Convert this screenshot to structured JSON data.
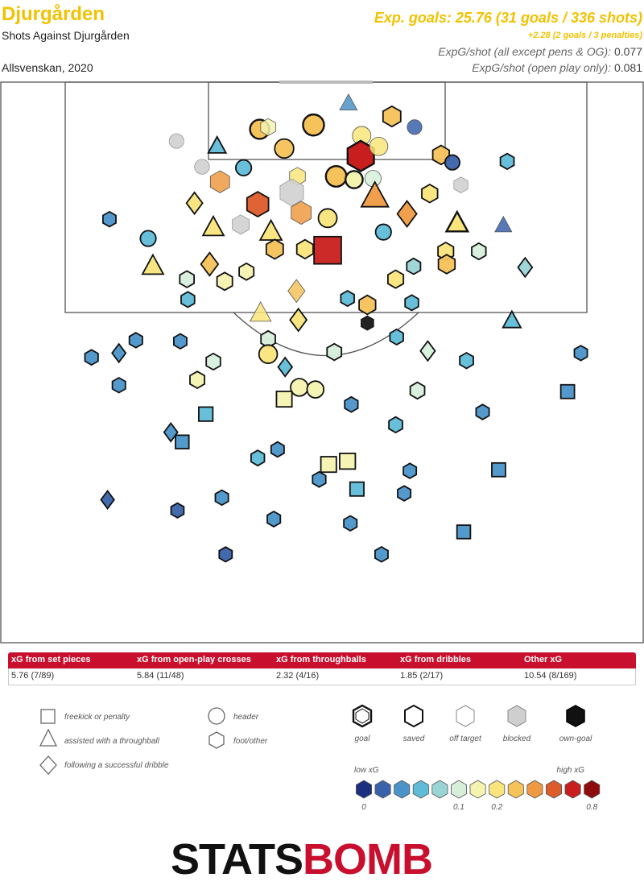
{
  "header": {
    "team": "Djurgården",
    "subtitle": "Shots Against Djurgården",
    "competition": "Allsvenskan, 2020",
    "xg_total": "Exp. goals: 25.76 (31 goals / 336 shots)",
    "xg_pens": "+2.28 (2 goals / 3 penalties)",
    "xg_per_shot_all_label": "ExpG/shot (all except pens & OG):",
    "xg_per_shot_all_value": "0.077",
    "xg_per_shot_open_label": "ExpG/shot (open play only):",
    "xg_per_shot_open_value": "0.081"
  },
  "colors": {
    "scale": [
      "#1d2f80",
      "#3a62aa",
      "#4b93c8",
      "#5fbcd8",
      "#9ad5d6",
      "#d6efdb",
      "#f5f3b0",
      "#f9e57b",
      "#f6c25a",
      "#ef9a42",
      "#dc5c2a",
      "#c91e1e",
      "#8e0c0c"
    ],
    "grey": "#d0d0d0",
    "own_goal": "#222222",
    "brand_red": "#c8102e",
    "title_yellow": "#f2c200"
  },
  "stats": [
    {
      "label": "xG from set pieces",
      "value": "5.76 (7/89)"
    },
    {
      "label": "xG from open-play crosses",
      "value": "5.84 (11/48)"
    },
    {
      "label": "xG from throughballs",
      "value": "2.32 (4/16)"
    },
    {
      "label": "xG from dribbles",
      "value": "1.85 (2/17)"
    },
    {
      "label": "Other xG",
      "value": "10.54 (8/169)"
    }
  ],
  "legend": {
    "shapes": [
      {
        "shape": "square",
        "label": "freekick or penalty"
      },
      {
        "shape": "triangle",
        "label": "assisted with a throughball"
      },
      {
        "shape": "diamond",
        "label": "following a successful dribble"
      },
      {
        "shape": "circle",
        "label": "header"
      },
      {
        "shape": "hexagon",
        "label": "foot/other"
      }
    ],
    "outcomes": [
      {
        "key": "goal",
        "label": "goal"
      },
      {
        "key": "saved",
        "label": "saved"
      },
      {
        "key": "off",
        "label": "off target"
      },
      {
        "key": "blocked",
        "label": "blocked"
      },
      {
        "key": "own",
        "label": "own-goal"
      }
    ],
    "low_label": "low xG",
    "high_label": "high xG",
    "scale_ticks": [
      {
        "label": "0",
        "index": 0
      },
      {
        "label": "0.1",
        "index": 5
      },
      {
        "label": "0.2",
        "index": 7
      },
      {
        "label": "0.8",
        "index": 12
      }
    ]
  },
  "logo": {
    "part1": "STATS",
    "part2": "BOMB"
  },
  "chart_data": {
    "type": "scatter",
    "title": "Shots Against Djurgården",
    "note": "x = distance from goal-line to right (m across width), y = depth from goal-line; xg = expected goal value",
    "x_range": [
      0,
      68
    ],
    "y_range": [
      0,
      52.5
    ],
    "series": [
      {
        "name": "shots",
        "points": [
          {
            "x": 36.8,
            "y": 2.0,
            "xg": 0.03,
            "shape": "triangle",
            "outcome": "off"
          },
          {
            "x": 18.6,
            "y": 5.5,
            "xg": 0.01,
            "shape": "circle",
            "outcome": "blocked"
          },
          {
            "x": 27.4,
            "y": 4.4,
            "xg": 0.21,
            "shape": "circle",
            "outcome": "goal"
          },
          {
            "x": 28.3,
            "y": 4.2,
            "xg": 0.12,
            "shape": "hexagon",
            "outcome": "off"
          },
          {
            "x": 33.1,
            "y": 4.0,
            "xg": 0.29,
            "shape": "circle",
            "outcome": "goal"
          },
          {
            "x": 38.2,
            "y": 5.0,
            "xg": 0.18,
            "shape": "circle",
            "outcome": "off"
          },
          {
            "x": 41.4,
            "y": 3.2,
            "xg": 0.26,
            "shape": "hexagon",
            "outcome": "saved"
          },
          {
            "x": 43.8,
            "y": 4.2,
            "xg": 0.01,
            "shape": "circle",
            "outcome": "off"
          },
          {
            "x": 22.9,
            "y": 6.0,
            "xg": 0.04,
            "shape": "triangle",
            "outcome": "saved"
          },
          {
            "x": 30.0,
            "y": 6.2,
            "xg": 0.2,
            "shape": "circle",
            "outcome": "saved"
          },
          {
            "x": 38.1,
            "y": 6.9,
            "xg": 0.7,
            "shape": "hexagon",
            "outcome": "goal"
          },
          {
            "x": 40.0,
            "y": 6.0,
            "xg": 0.17,
            "shape": "circle",
            "outcome": "off"
          },
          {
            "x": 46.6,
            "y": 6.8,
            "xg": 0.2,
            "shape": "hexagon",
            "outcome": "saved"
          },
          {
            "x": 47.8,
            "y": 7.5,
            "xg": 0.01,
            "shape": "circle",
            "outcome": "saved"
          },
          {
            "x": 53.6,
            "y": 7.4,
            "xg": 0.05,
            "shape": "hexagon",
            "outcome": "saved"
          },
          {
            "x": 21.3,
            "y": 7.9,
            "xg": 0.02,
            "shape": "circle",
            "outcome": "blocked"
          },
          {
            "x": 25.7,
            "y": 8.0,
            "xg": 0.05,
            "shape": "circle",
            "outcome": "saved"
          },
          {
            "x": 31.4,
            "y": 8.8,
            "xg": 0.16,
            "shape": "hexagon",
            "outcome": "off"
          },
          {
            "x": 35.5,
            "y": 8.8,
            "xg": 0.27,
            "shape": "circle",
            "outcome": "goal"
          },
          {
            "x": 37.4,
            "y": 9.1,
            "xg": 0.12,
            "shape": "circle",
            "outcome": "goal"
          },
          {
            "x": 39.4,
            "y": 9.0,
            "xg": 0.08,
            "shape": "circle",
            "outcome": "off"
          },
          {
            "x": 23.2,
            "y": 9.3,
            "xg": 0.34,
            "shape": "hexagon",
            "outcome": "off"
          },
          {
            "x": 30.8,
            "y": 10.3,
            "xg": 0.55,
            "shape": "hexagon",
            "outcome": "blocked"
          },
          {
            "x": 39.6,
            "y": 10.7,
            "xg": 0.4,
            "shape": "triangle",
            "outcome": "saved"
          },
          {
            "x": 45.4,
            "y": 10.4,
            "xg": 0.16,
            "shape": "hexagon",
            "outcome": "saved"
          },
          {
            "x": 48.7,
            "y": 9.6,
            "xg": 0.07,
            "shape": "hexagon",
            "outcome": "blocked"
          },
          {
            "x": 20.5,
            "y": 11.3,
            "xg": 0.15,
            "shape": "diamond",
            "outcome": "saved"
          },
          {
            "x": 27.2,
            "y": 11.4,
            "xg": 0.46,
            "shape": "hexagon",
            "outcome": "saved"
          },
          {
            "x": 31.8,
            "y": 12.2,
            "xg": 0.38,
            "shape": "hexagon",
            "outcome": "off"
          },
          {
            "x": 34.6,
            "y": 12.7,
            "xg": 0.18,
            "shape": "circle",
            "outcome": "saved"
          },
          {
            "x": 43.0,
            "y": 12.3,
            "xg": 0.31,
            "shape": "diamond",
            "outcome": "saved"
          },
          {
            "x": 48.3,
            "y": 13.2,
            "xg": 0.18,
            "shape": "triangle",
            "outcome": "goal"
          },
          {
            "x": 11.5,
            "y": 12.8,
            "xg": 0.02,
            "shape": "hexagon",
            "outcome": "saved"
          },
          {
            "x": 22.5,
            "y": 13.6,
            "xg": 0.16,
            "shape": "triangle",
            "outcome": "saved"
          },
          {
            "x": 28.6,
            "y": 14.0,
            "xg": 0.19,
            "shape": "triangle",
            "outcome": "saved"
          },
          {
            "x": 25.4,
            "y": 13.3,
            "xg": 0.22,
            "shape": "hexagon",
            "outcome": "blocked"
          },
          {
            "x": 40.5,
            "y": 14.0,
            "xg": 0.05,
            "shape": "circle",
            "outcome": "saved"
          },
          {
            "x": 53.2,
            "y": 13.4,
            "xg": 0.01,
            "shape": "triangle",
            "outcome": "off"
          },
          {
            "x": 15.6,
            "y": 14.6,
            "xg": 0.05,
            "shape": "circle",
            "outcome": "saved"
          },
          {
            "x": 29.0,
            "y": 15.6,
            "xg": 0.22,
            "shape": "hexagon",
            "outcome": "saved"
          },
          {
            "x": 32.2,
            "y": 15.6,
            "xg": 0.19,
            "shape": "hexagon",
            "outcome": "saved"
          },
          {
            "x": 34.6,
            "y": 15.7,
            "xg": 0.7,
            "shape": "square",
            "outcome": "saved"
          },
          {
            "x": 47.1,
            "y": 15.8,
            "xg": 0.15,
            "shape": "hexagon",
            "outcome": "saved"
          },
          {
            "x": 50.6,
            "y": 15.8,
            "xg": 0.08,
            "shape": "hexagon",
            "outcome": "saved"
          },
          {
            "x": 16.1,
            "y": 17.2,
            "xg": 0.17,
            "shape": "triangle",
            "outcome": "saved"
          },
          {
            "x": 22.1,
            "y": 17.0,
            "xg": 0.21,
            "shape": "diamond",
            "outcome": "saved"
          },
          {
            "x": 26.0,
            "y": 17.7,
            "xg": 0.1,
            "shape": "hexagon",
            "outcome": "saved"
          },
          {
            "x": 43.7,
            "y": 17.2,
            "xg": 0.06,
            "shape": "hexagon",
            "outcome": "saved"
          },
          {
            "x": 47.2,
            "y": 17.0,
            "xg": 0.2,
            "shape": "hexagon",
            "outcome": "saved"
          },
          {
            "x": 55.5,
            "y": 17.3,
            "xg": 0.06,
            "shape": "diamond",
            "outcome": "saved"
          },
          {
            "x": 19.7,
            "y": 18.4,
            "xg": 0.09,
            "shape": "hexagon",
            "outcome": "saved"
          },
          {
            "x": 23.7,
            "y": 18.6,
            "xg": 0.14,
            "shape": "hexagon",
            "outcome": "saved"
          },
          {
            "x": 41.8,
            "y": 18.4,
            "xg": 0.15,
            "shape": "hexagon",
            "outcome": "saved"
          },
          {
            "x": 31.3,
            "y": 19.5,
            "xg": 0.2,
            "shape": "diamond",
            "outcome": "off"
          },
          {
            "x": 36.7,
            "y": 20.2,
            "xg": 0.04,
            "shape": "hexagon",
            "outcome": "saved"
          },
          {
            "x": 38.8,
            "y": 20.8,
            "xg": 0.2,
            "shape": "hexagon",
            "outcome": "saved"
          },
          {
            "x": 19.8,
            "y": 20.3,
            "xg": 0.04,
            "shape": "hexagon",
            "outcome": "saved"
          },
          {
            "x": 43.5,
            "y": 20.6,
            "xg": 0.04,
            "shape": "hexagon",
            "outcome": "saved"
          },
          {
            "x": 27.5,
            "y": 21.6,
            "xg": 0.17,
            "shape": "triangle",
            "outcome": "off"
          },
          {
            "x": 31.5,
            "y": 22.2,
            "xg": 0.18,
            "shape": "diamond",
            "outcome": "saved"
          },
          {
            "x": 38.8,
            "y": 22.5,
            "xg": 0.0,
            "shape": "hexagon",
            "outcome": "own"
          },
          {
            "x": 54.1,
            "y": 22.3,
            "xg": 0.05,
            "shape": "triangle",
            "outcome": "saved"
          },
          {
            "x": 14.3,
            "y": 24.1,
            "xg": 0.02,
            "shape": "hexagon",
            "outcome": "saved"
          },
          {
            "x": 19.0,
            "y": 24.2,
            "xg": 0.02,
            "shape": "hexagon",
            "outcome": "saved"
          },
          {
            "x": 28.3,
            "y": 24.0,
            "xg": 0.09,
            "shape": "hexagon",
            "outcome": "saved"
          },
          {
            "x": 41.9,
            "y": 23.8,
            "xg": 0.04,
            "shape": "hexagon",
            "outcome": "saved"
          },
          {
            "x": 28.3,
            "y": 25.4,
            "xg": 0.17,
            "shape": "circle",
            "outcome": "saved"
          },
          {
            "x": 35.3,
            "y": 25.2,
            "xg": 0.09,
            "shape": "hexagon",
            "outcome": "saved"
          },
          {
            "x": 45.2,
            "y": 25.1,
            "xg": 0.08,
            "shape": "diamond",
            "outcome": "saved"
          },
          {
            "x": 12.5,
            "y": 25.3,
            "xg": 0.03,
            "shape": "diamond",
            "outcome": "saved"
          },
          {
            "x": 9.6,
            "y": 25.7,
            "xg": 0.03,
            "shape": "hexagon",
            "outcome": "saved"
          },
          {
            "x": 22.5,
            "y": 26.1,
            "xg": 0.08,
            "shape": "hexagon",
            "outcome": "saved"
          },
          {
            "x": 30.1,
            "y": 26.6,
            "xg": 0.05,
            "shape": "diamond",
            "outcome": "saved"
          },
          {
            "x": 49.3,
            "y": 26.0,
            "xg": 0.05,
            "shape": "hexagon",
            "outcome": "saved"
          },
          {
            "x": 61.4,
            "y": 25.3,
            "xg": 0.02,
            "shape": "hexagon",
            "outcome": "saved"
          },
          {
            "x": 20.8,
            "y": 27.8,
            "xg": 0.1,
            "shape": "hexagon",
            "outcome": "saved"
          },
          {
            "x": 12.5,
            "y": 28.3,
            "xg": 0.02,
            "shape": "hexagon",
            "outcome": "saved"
          },
          {
            "x": 31.6,
            "y": 28.5,
            "xg": 0.13,
            "shape": "circle",
            "outcome": "saved"
          },
          {
            "x": 33.3,
            "y": 28.7,
            "xg": 0.1,
            "shape": "circle",
            "outcome": "saved"
          },
          {
            "x": 44.1,
            "y": 28.8,
            "xg": 0.09,
            "shape": "hexagon",
            "outcome": "saved"
          },
          {
            "x": 60.0,
            "y": 28.9,
            "xg": 0.03,
            "shape": "square",
            "outcome": "saved"
          },
          {
            "x": 30.0,
            "y": 29.6,
            "xg": 0.12,
            "shape": "square",
            "outcome": "saved"
          },
          {
            "x": 37.1,
            "y": 30.1,
            "xg": 0.03,
            "shape": "hexagon",
            "outcome": "saved"
          },
          {
            "x": 21.7,
            "y": 31.0,
            "xg": 0.05,
            "shape": "square",
            "outcome": "saved"
          },
          {
            "x": 51.0,
            "y": 30.8,
            "xg": 0.02,
            "shape": "hexagon",
            "outcome": "saved"
          },
          {
            "x": 41.8,
            "y": 32.0,
            "xg": 0.05,
            "shape": "hexagon",
            "outcome": "saved"
          },
          {
            "x": 18.0,
            "y": 32.7,
            "xg": 0.03,
            "shape": "diamond",
            "outcome": "saved"
          },
          {
            "x": 19.2,
            "y": 33.6,
            "xg": 0.02,
            "shape": "square",
            "outcome": "saved"
          },
          {
            "x": 29.3,
            "y": 34.3,
            "xg": 0.02,
            "shape": "hexagon",
            "outcome": "saved"
          },
          {
            "x": 27.2,
            "y": 35.1,
            "xg": 0.04,
            "shape": "hexagon",
            "outcome": "saved"
          },
          {
            "x": 34.7,
            "y": 35.7,
            "xg": 0.12,
            "shape": "square",
            "outcome": "saved"
          },
          {
            "x": 36.7,
            "y": 35.4,
            "xg": 0.13,
            "shape": "square",
            "outcome": "saved"
          },
          {
            "x": 43.3,
            "y": 36.3,
            "xg": 0.02,
            "shape": "hexagon",
            "outcome": "saved"
          },
          {
            "x": 52.7,
            "y": 36.2,
            "xg": 0.03,
            "shape": "square",
            "outcome": "saved"
          },
          {
            "x": 33.7,
            "y": 37.1,
            "xg": 0.03,
            "shape": "hexagon",
            "outcome": "saved"
          },
          {
            "x": 37.7,
            "y": 38.0,
            "xg": 0.04,
            "shape": "square",
            "outcome": "saved"
          },
          {
            "x": 23.4,
            "y": 38.8,
            "xg": 0.02,
            "shape": "hexagon",
            "outcome": "saved"
          },
          {
            "x": 42.7,
            "y": 38.4,
            "xg": 0.02,
            "shape": "hexagon",
            "outcome": "saved"
          },
          {
            "x": 11.3,
            "y": 39.0,
            "xg": 0.01,
            "shape": "diamond",
            "outcome": "saved"
          },
          {
            "x": 18.7,
            "y": 40.0,
            "xg": 0.01,
            "shape": "hexagon",
            "outcome": "saved"
          },
          {
            "x": 28.9,
            "y": 40.8,
            "xg": 0.03,
            "shape": "hexagon",
            "outcome": "saved"
          },
          {
            "x": 37.0,
            "y": 41.2,
            "xg": 0.02,
            "shape": "hexagon",
            "outcome": "saved"
          },
          {
            "x": 49.0,
            "y": 42.0,
            "xg": 0.02,
            "shape": "square",
            "outcome": "saved"
          },
          {
            "x": 23.8,
            "y": 44.1,
            "xg": 0.01,
            "shape": "hexagon",
            "outcome": "saved"
          },
          {
            "x": 40.3,
            "y": 44.1,
            "xg": 0.02,
            "shape": "hexagon",
            "outcome": "saved"
          }
        ]
      }
    ]
  }
}
